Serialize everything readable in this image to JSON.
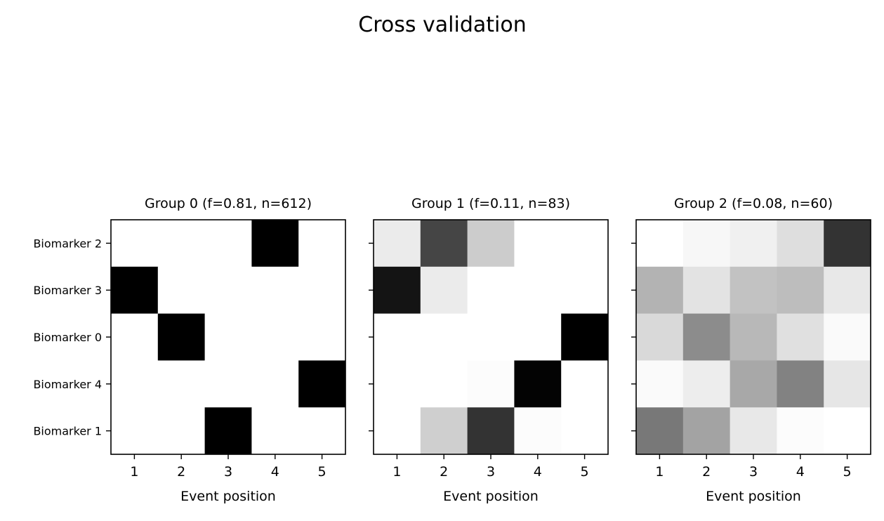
{
  "figure": {
    "title": "Cross validation"
  },
  "chart_data": [
    {
      "type": "heatmap",
      "title": "Group 0 (f=0.81, n=612)",
      "xlabel": "Event position",
      "ylabel": "",
      "x_ticks": [
        "1",
        "2",
        "3",
        "4",
        "5"
      ],
      "y_ticks": [
        "Biomarker 2",
        "Biomarker 3",
        "Biomarker 0",
        "Biomarker 4",
        "Biomarker 1"
      ],
      "colormap": "grayscale (0 = white, 1 = black)",
      "values": [
        [
          0,
          0,
          0,
          1,
          0
        ],
        [
          1,
          0,
          0,
          0,
          0
        ],
        [
          0,
          1,
          0,
          0,
          0
        ],
        [
          0,
          0,
          0,
          0,
          1
        ],
        [
          0,
          0,
          1,
          0,
          0
        ]
      ]
    },
    {
      "type": "heatmap",
      "title": "Group 1 (f=0.11, n=83)",
      "xlabel": "Event position",
      "ylabel": "",
      "x_ticks": [
        "1",
        "2",
        "3",
        "4",
        "5"
      ],
      "y_ticks": [
        "Biomarker 2",
        "Biomarker 3",
        "Biomarker 0",
        "Biomarker 4",
        "Biomarker 1"
      ],
      "show_y_tick_labels": false,
      "colormap": "grayscale (0 = white, 1 = black)",
      "values": [
        [
          0.08,
          0.73,
          0.2,
          0,
          0
        ],
        [
          0.92,
          0.08,
          0,
          0,
          0
        ],
        [
          0,
          0,
          0,
          0,
          1
        ],
        [
          0,
          0,
          0.01,
          0.99,
          0
        ],
        [
          0,
          0.19,
          0.8,
          0.01,
          0
        ]
      ]
    },
    {
      "type": "heatmap",
      "title": "Group 2 (f=0.08, n=60)",
      "xlabel": "Event position",
      "ylabel": "",
      "x_ticks": [
        "1",
        "2",
        "3",
        "4",
        "5"
      ],
      "y_ticks": [
        "Biomarker 2",
        "Biomarker 3",
        "Biomarker 0",
        "Biomarker 4",
        "Biomarker 1"
      ],
      "show_y_tick_labels": false,
      "colormap": "grayscale (0 = white, 1 = black)",
      "values": [
        [
          0,
          0.03,
          0.06,
          0.13,
          0.8
        ],
        [
          0.3,
          0.11,
          0.24,
          0.26,
          0.09
        ],
        [
          0.15,
          0.45,
          0.28,
          0.12,
          0.02
        ],
        [
          0.02,
          0.07,
          0.34,
          0.49,
          0.1
        ],
        [
          0.53,
          0.36,
          0.09,
          0.01,
          0
        ]
      ]
    }
  ]
}
